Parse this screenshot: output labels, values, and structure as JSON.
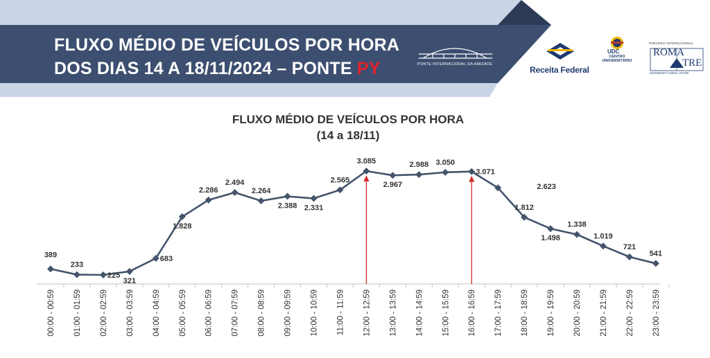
{
  "banner": {
    "title_line1": "FLUXO MÉDIO DE VEÍCULOS POR HORA",
    "title_line2": "DOS DIAS 14 A 18/11/2024 – PONTE ",
    "title_highlight": "PY",
    "bridge_caption": "PONTE INTERNACIONAL DA AMIZADE"
  },
  "logos": {
    "receita": "Receita Federal",
    "udc": "UDC",
    "udc_sub": "CENTRO UNIVERSITÁRIO",
    "roma_top": "PARCERIA INTERNACIONAL",
    "roma_left": "ROMA",
    "roma_right": "TRE",
    "roma_bottom": "UNIVERSITÀ DEGLI STUDI"
  },
  "colors": {
    "banner_navy": "#3d4f70",
    "banner_light": "#c9d4e6",
    "line": "#44546a",
    "arrow": "#d62b2b"
  },
  "chart_data": {
    "type": "line",
    "title": "FLUXO MÉDIO DE VEÍCULOS POR HORA",
    "subtitle": "(14 a 18/11)",
    "categories": [
      "00:00 - 00:59",
      "01:00 - 01:59",
      "02:00 - 02:59",
      "03:00 - 03:59",
      "04:00 - 04:59",
      "05:00 - 05:59",
      "06:00 - 06:59",
      "07:00 - 07:59",
      "08:00 - 08:59",
      "09:00 - 09:59",
      "10:00 - 10:59",
      "11:00 - 11:59",
      "12:00 - 12:59",
      "13:00 - 13:59",
      "14:00 - 14:59",
      "15:00 - 15:59",
      "16:00 - 16:59",
      "17:00 - 17:59",
      "18:00 - 18:59",
      "19:00 - 19:59",
      "20:00 - 20:59",
      "21:00 - 21:59",
      "22:00 - 22:59",
      "23:00 - 23:59"
    ],
    "values": [
      389,
      233,
      225,
      321,
      683,
      1828,
      2286,
      2494,
      2264,
      2388,
      2331,
      2565,
      3085,
      2967,
      2988,
      3050,
      3071,
      2623,
      1812,
      1498,
      1338,
      1019,
      721,
      541
    ],
    "value_labels": [
      "389",
      "233",
      "225",
      "321",
      "683",
      "1.828",
      "2.286",
      "2.494",
      "2.264",
      "2.388",
      "2.331",
      "2.565",
      "3.085",
      "2.967",
      "2.988",
      "3.050",
      "3.071",
      "2.623",
      "1.812",
      "1.498",
      "1.338",
      "1.019",
      "721",
      "541"
    ],
    "label_positions": [
      "above",
      "above",
      "right",
      "below",
      "right",
      "below",
      "above",
      "above",
      "above",
      "below",
      "below",
      "above",
      "above",
      "below",
      "above",
      "above",
      "right",
      "below",
      "above",
      "below",
      "above",
      "above",
      "above",
      "above"
    ],
    "highlight_categories": [
      "12:00 - 12:59",
      "16:00 - 16:59"
    ],
    "ylim": [
      0,
      3500
    ],
    "grid": false,
    "legend": "none",
    "xlabel": "",
    "ylabel": ""
  }
}
